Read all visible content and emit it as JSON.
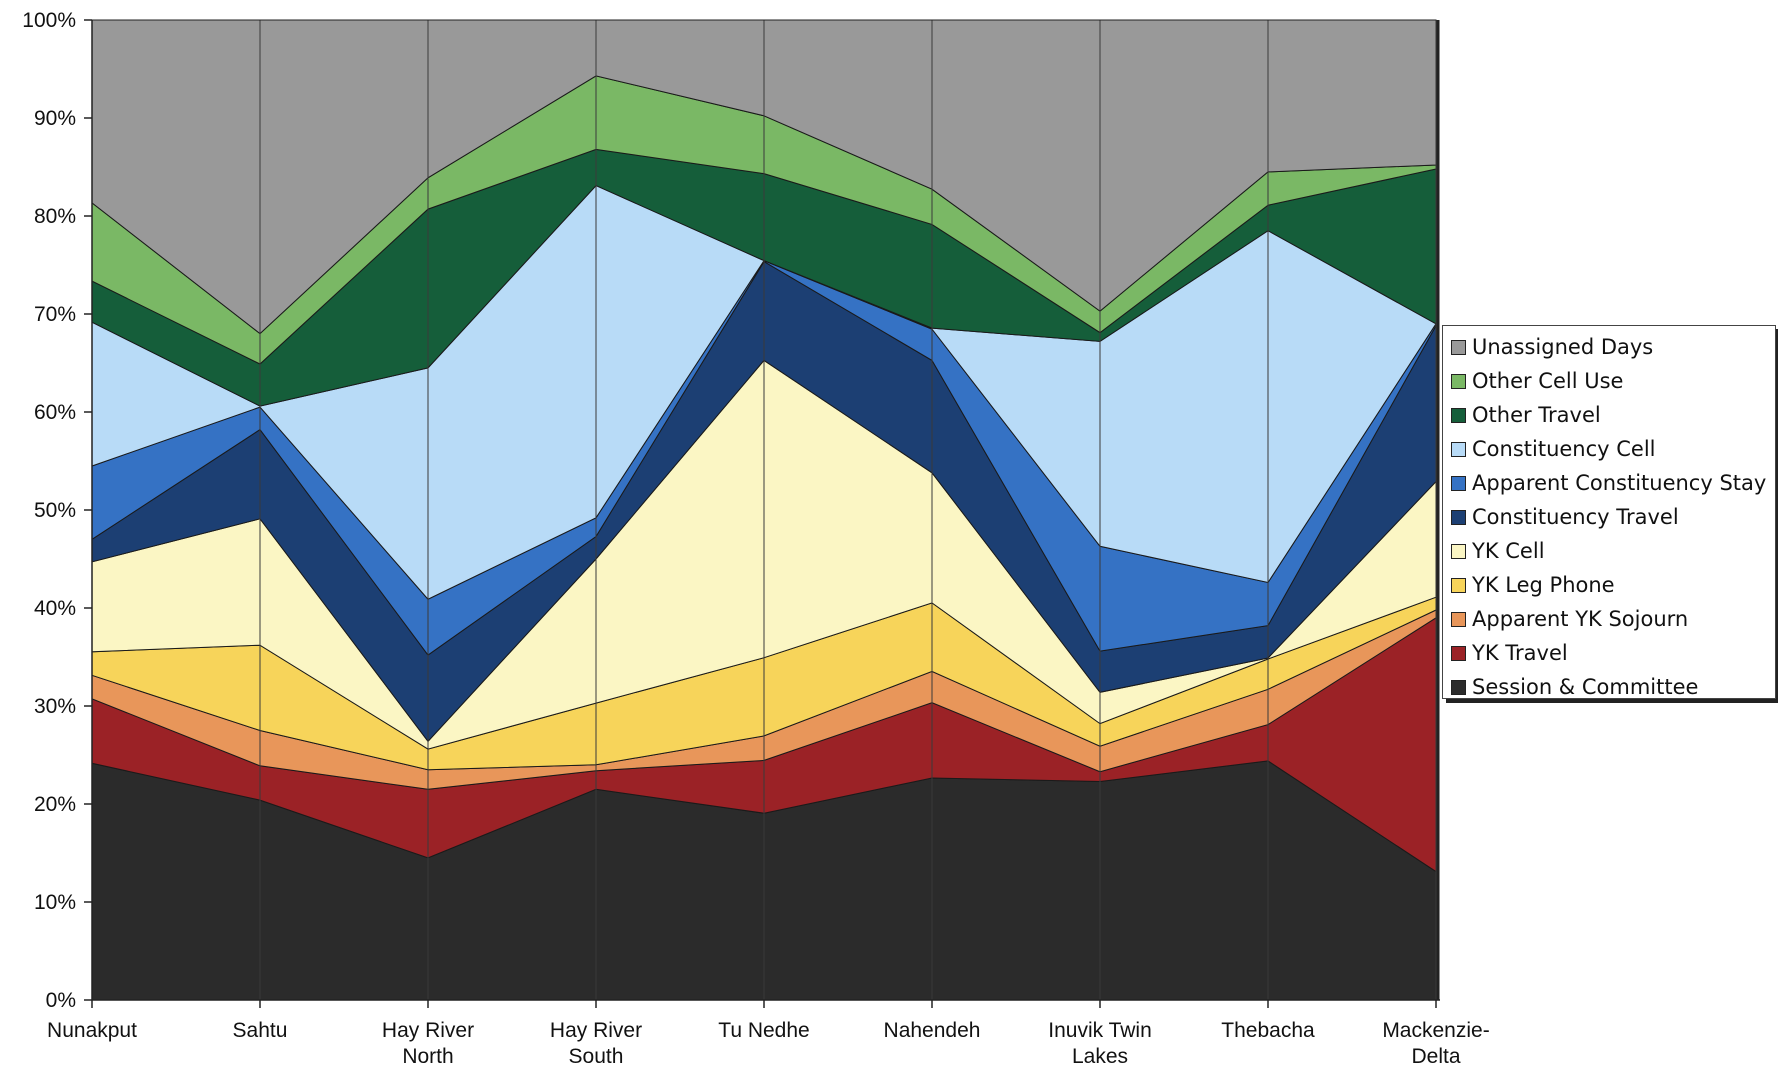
{
  "chart_data": {
    "type": "area",
    "stacked": true,
    "percent": true,
    "categories": [
      [
        "Nunakput"
      ],
      [
        "Sahtu"
      ],
      [
        "Hay River",
        "North"
      ],
      [
        "Hay River",
        "South"
      ],
      [
        "Tu Nedhe"
      ],
      [
        "Nahendeh"
      ],
      [
        "Inuvik Twin",
        "Lakes"
      ],
      [
        "Thebacha"
      ],
      [
        "Mackenzie-",
        "Delta"
      ]
    ],
    "series": [
      {
        "name": "Session & Committee",
        "color": "#2b2b2b",
        "values": [
          24.2,
          20.4,
          14.5,
          21.5,
          19.1,
          22.7,
          22.3,
          24.4,
          13.1
        ]
      },
      {
        "name": "YK Travel",
        "color": "#9b2226",
        "values": [
          6.6,
          3.5,
          7.0,
          1.9,
          5.4,
          7.7,
          1.0,
          3.7,
          25.9
        ]
      },
      {
        "name": "Apparent YK Sojourn",
        "color": "#e8965a",
        "values": [
          2.4,
          3.6,
          2.0,
          0.6,
          2.5,
          3.2,
          2.6,
          3.6,
          0.8
        ]
      },
      {
        "name": "YK Leg Phone",
        "color": "#f7d45a",
        "values": [
          2.4,
          8.7,
          2.1,
          6.3,
          8.0,
          7.0,
          2.3,
          3.1,
          1.3
        ]
      },
      {
        "name": "YK Cell",
        "color": "#fbf6c4",
        "values": [
          9.2,
          12.9,
          0.8,
          14.7,
          30.4,
          13.3,
          3.2,
          0.1,
          11.8
        ]
      },
      {
        "name": "Constituency Travel",
        "color": "#1c3f73",
        "values": [
          2.3,
          9.1,
          8.8,
          2.3,
          10.1,
          11.5,
          4.2,
          3.3,
          15.9
        ]
      },
      {
        "name": "Apparent Constituency Stay",
        "color": "#3572c4",
        "values": [
          7.5,
          2.3,
          5.7,
          1.9,
          0.1,
          3.2,
          10.7,
          4.4,
          0.2
        ]
      },
      {
        "name": "Constituency Cell",
        "color": "#b8dbf7",
        "values": [
          14.7,
          0.1,
          23.6,
          33.9,
          0.0,
          0.1,
          20.9,
          35.9,
          0.0
        ]
      },
      {
        "name": "Other Travel",
        "color": "#155e3a",
        "values": [
          4.2,
          4.3,
          16.2,
          3.7,
          8.9,
          10.6,
          0.9,
          2.6,
          15.8
        ]
      },
      {
        "name": "Other Cell Use",
        "color": "#7ab865",
        "values": [
          8.0,
          3.1,
          3.2,
          7.5,
          5.9,
          3.6,
          2.2,
          3.4,
          0.4
        ]
      },
      {
        "name": "Unassigned Days",
        "color": "#999999",
        "values": [
          18.7,
          32.0,
          16.1,
          5.7,
          9.8,
          17.3,
          29.7,
          15.5,
          14.8
        ]
      }
    ],
    "yticks": [
      "0%",
      "10%",
      "20%",
      "30%",
      "40%",
      "50%",
      "60%",
      "70%",
      "80%",
      "90%",
      "100%"
    ],
    "ylim": [
      0,
      100
    ],
    "legend_position": "right",
    "legend_items": [
      {
        "label": "Unassigned Days",
        "color": "#999999"
      },
      {
        "label": "Other Cell Use",
        "color": "#7ab865"
      },
      {
        "label": "Other Travel",
        "color": "#155e3a"
      },
      {
        "label": "Constituency Cell",
        "color": "#b8dbf7"
      },
      {
        "label": "Apparent Constituency Stay",
        "color": "#3572c4"
      },
      {
        "label": "Constituency Travel",
        "color": "#1c3f73"
      },
      {
        "label": "YK Cell",
        "color": "#fbf6c4"
      },
      {
        "label": "YK Leg Phone",
        "color": "#f7d45a"
      },
      {
        "label": "Apparent YK Sojourn",
        "color": "#e8965a"
      },
      {
        "label": "YK Travel",
        "color": "#9b2226"
      },
      {
        "label": "Session & Committee",
        "color": "#2b2b2b"
      }
    ]
  }
}
